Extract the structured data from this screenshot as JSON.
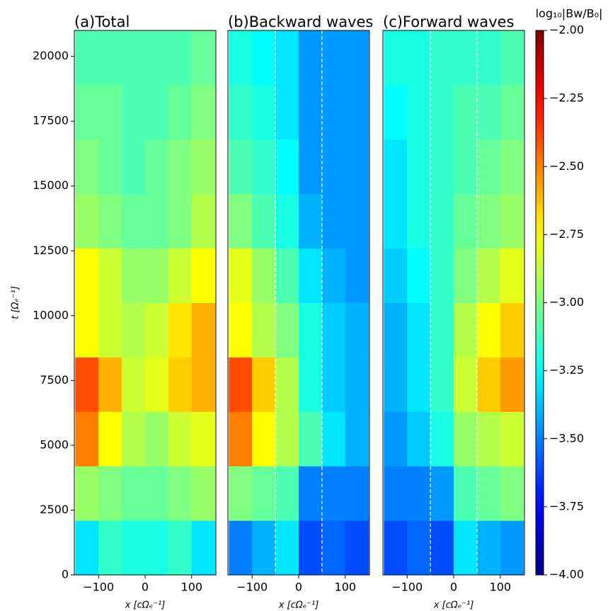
{
  "chart_data": [
    {
      "type": "heatmap",
      "title": "(a)Total",
      "xlabel": "x [cΩₑ⁻¹]",
      "ylabel": "t [Ωₑ⁻¹]",
      "xlim": [
        -152,
        152
      ],
      "ylim": [
        0,
        21000
      ],
      "xticks": [
        {
          "value": -100,
          "label": "−100"
        },
        0,
        100
      ],
      "yticks": [
        0,
        2500,
        5000,
        7500,
        10000,
        12500,
        15000,
        17500,
        20000
      ],
      "xbins": [
        -150,
        -100,
        -50,
        0,
        50,
        100,
        150
      ],
      "ybins": [
        0,
        2100,
        4200,
        6300,
        8400,
        10500,
        12600,
        14700,
        16800,
        18900,
        21000
      ],
      "z": [
        [
          -3.3,
          -3.15,
          -3.2,
          -3.2,
          -3.15,
          -3.3
        ],
        [
          -2.95,
          -3.0,
          -3.05,
          -3.05,
          -3.0,
          -2.95
        ],
        [
          -2.5,
          -2.75,
          -2.9,
          -2.95,
          -2.85,
          -2.8
        ],
        [
          -2.4,
          -2.6,
          -2.85,
          -2.8,
          -2.65,
          -2.6
        ],
        [
          -2.75,
          -2.85,
          -2.9,
          -2.85,
          -2.7,
          -2.6
        ],
        [
          -2.75,
          -2.85,
          -2.95,
          -2.95,
          -2.85,
          -2.75
        ],
        [
          -2.95,
          -3.0,
          -3.05,
          -3.05,
          -3.0,
          -2.9
        ],
        [
          -3.0,
          -3.05,
          -3.1,
          -3.05,
          -3.0,
          -2.95
        ],
        [
          -3.05,
          -3.05,
          -3.1,
          -3.1,
          -3.05,
          -3.0
        ],
        [
          -3.1,
          -3.1,
          -3.1,
          -3.1,
          -3.1,
          -3.05
        ]
      ]
    },
    {
      "type": "heatmap",
      "title": "(b)Backward waves",
      "xlabel": "x [cΩₑ⁻¹]",
      "xlim": [
        -152,
        152
      ],
      "ylim": [
        0,
        21000
      ],
      "xticks": [
        {
          "value": -100,
          "label": "−100"
        },
        0,
        100
      ],
      "vlines": [
        -50,
        50
      ],
      "xbins": [
        -150,
        -100,
        -50,
        0,
        50,
        100,
        150
      ],
      "ybins": [
        0,
        2100,
        4200,
        6300,
        8400,
        10500,
        12600,
        14700,
        16800,
        18900,
        21000
      ],
      "z": [
        [
          -3.5,
          -3.4,
          -3.3,
          -3.6,
          -3.55,
          -3.6
        ],
        [
          -3.0,
          -3.05,
          -3.1,
          -3.5,
          -3.5,
          -3.5
        ],
        [
          -2.5,
          -2.75,
          -2.9,
          -3.1,
          -3.3,
          -3.4
        ],
        [
          -2.4,
          -2.65,
          -2.9,
          -3.2,
          -3.35,
          -3.4
        ],
        [
          -2.75,
          -2.9,
          -3.0,
          -3.2,
          -3.35,
          -3.4
        ],
        [
          -2.8,
          -2.95,
          -3.1,
          -3.3,
          -3.4,
          -3.45
        ],
        [
          -3.0,
          -3.1,
          -3.2,
          -3.4,
          -3.45,
          -3.45
        ],
        [
          -3.1,
          -3.15,
          -3.25,
          -3.45,
          -3.45,
          -3.45
        ],
        [
          -3.15,
          -3.2,
          -3.3,
          -3.45,
          -3.45,
          -3.45
        ],
        [
          -3.2,
          -3.25,
          -3.3,
          -3.45,
          -3.45,
          -3.45
        ]
      ]
    },
    {
      "type": "heatmap",
      "title": "(c)Forward waves",
      "xlabel": "x [cΩₑ⁻¹]",
      "xlim": [
        -152,
        152
      ],
      "ylim": [
        0,
        21000
      ],
      "xticks": [
        {
          "value": -100,
          "label": "−100"
        },
        0,
        100
      ],
      "vlines": [
        -50,
        50
      ],
      "xbins": [
        -150,
        -100,
        -50,
        0,
        50,
        100,
        150
      ],
      "ybins": [
        0,
        2100,
        4200,
        6300,
        8400,
        10500,
        12600,
        14700,
        16800,
        18900,
        21000
      ],
      "z": [
        [
          -3.6,
          -3.55,
          -3.6,
          -3.3,
          -3.4,
          -3.45
        ],
        [
          -3.5,
          -3.5,
          -3.45,
          -3.1,
          -3.05,
          -3.0
        ],
        [
          -3.45,
          -3.35,
          -3.2,
          -2.95,
          -2.9,
          -2.85
        ],
        [
          -3.4,
          -3.3,
          -3.15,
          -2.85,
          -2.65,
          -2.55
        ],
        [
          -3.4,
          -3.3,
          -3.15,
          -2.9,
          -2.75,
          -2.65
        ],
        [
          -3.35,
          -3.25,
          -3.15,
          -3.0,
          -2.9,
          -2.8
        ],
        [
          -3.3,
          -3.2,
          -3.15,
          -3.05,
          -3.0,
          -2.95
        ],
        [
          -3.3,
          -3.2,
          -3.15,
          -3.1,
          -3.05,
          -3.0
        ],
        [
          -3.25,
          -3.2,
          -3.15,
          -3.1,
          -3.1,
          -3.05
        ],
        [
          -3.2,
          -3.2,
          -3.15,
          -3.15,
          -3.15,
          -3.1
        ]
      ]
    }
  ],
  "colorbar": {
    "label": "log₁₀|Bw/B₀|",
    "clim": [
      -4,
      -2
    ],
    "colormap": "jet",
    "ticks": [
      {
        "value": -2,
        "label": "−2.00"
      },
      {
        "value": -2.25,
        "label": "−2.25"
      },
      {
        "value": -2.5,
        "label": "−2.50"
      },
      {
        "value": -2.75,
        "label": "−2.75"
      },
      {
        "value": -3,
        "label": "−3.00"
      },
      {
        "value": -3.25,
        "label": "−3.25"
      },
      {
        "value": -3.5,
        "label": "−3.50"
      },
      {
        "value": -3.75,
        "label": "−3.75"
      },
      {
        "value": -4,
        "label": "−4.00"
      }
    ]
  }
}
